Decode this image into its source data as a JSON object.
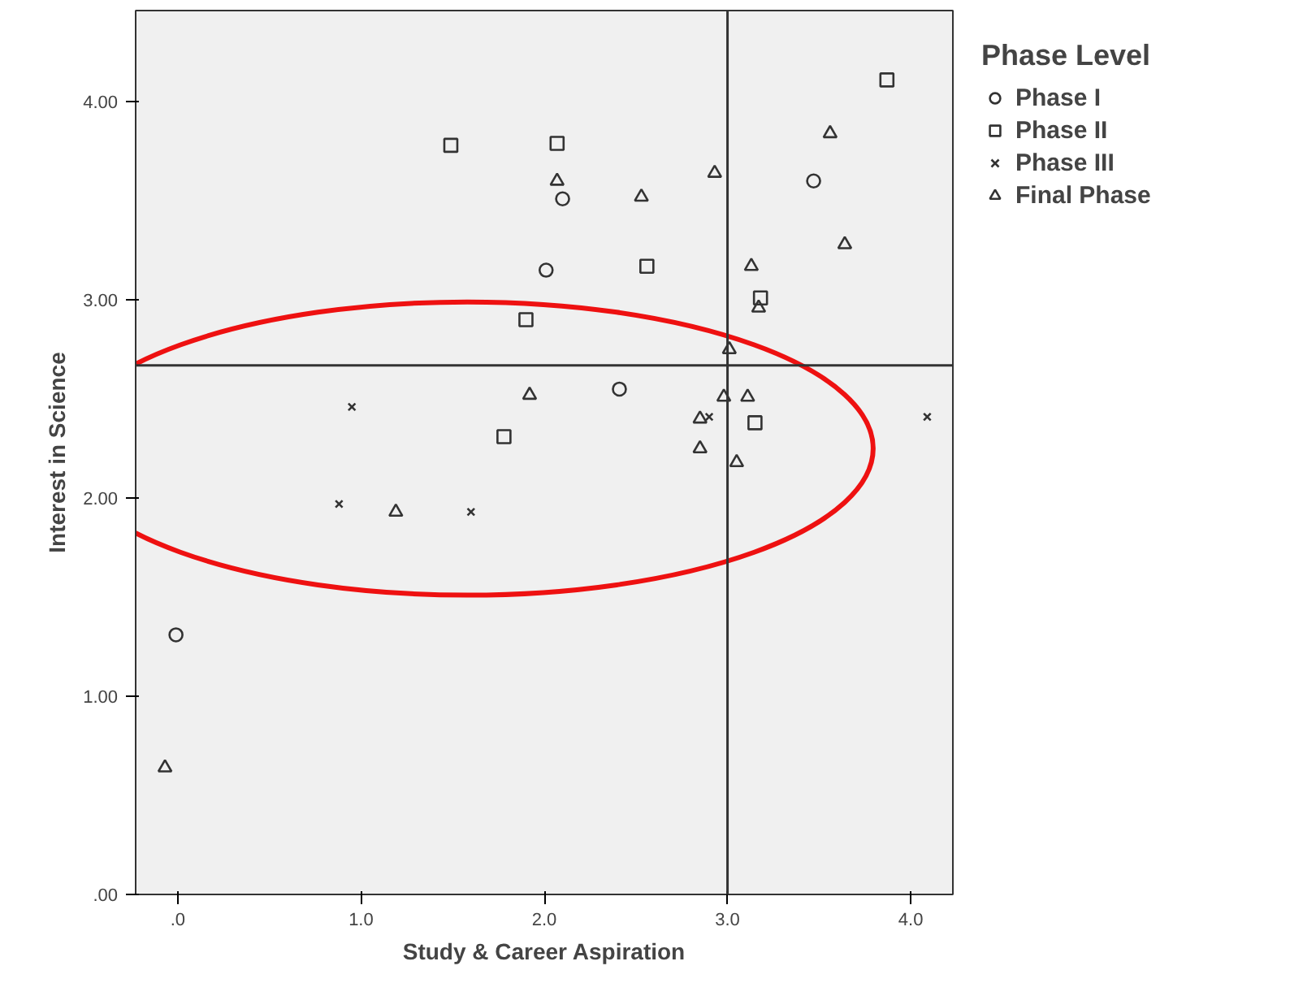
{
  "chart_data": {
    "type": "scatter",
    "xlabel": "Study & Career Aspiration",
    "ylabel": "Interest in Science",
    "legend_title": "Phase Level",
    "legend": "right",
    "grid": false,
    "xlim": [
      -0.23,
      4.23
    ],
    "ylim": [
      0,
      4.46
    ],
    "xticks": [
      {
        "value": 0,
        "label": ".0"
      },
      {
        "value": 1,
        "label": "1.0"
      },
      {
        "value": 2,
        "label": "2.0"
      },
      {
        "value": 3,
        "label": "3.0"
      },
      {
        "value": 4,
        "label": "4.0"
      }
    ],
    "yticks": [
      {
        "value": 0,
        "label": ".00"
      },
      {
        "value": 1,
        "label": "1.00"
      },
      {
        "value": 2,
        "label": "2.00"
      },
      {
        "value": 3,
        "label": "3.00"
      },
      {
        "value": 4,
        "label": "4.00"
      }
    ],
    "ref_lines": [
      {
        "axis": "x",
        "value": 3.0,
        "color": "#333333"
      },
      {
        "axis": "y",
        "value": 2.67,
        "color": "#333333"
      }
    ],
    "series": [
      {
        "name": "Phase I",
        "color": "#333333",
        "marker": "circle",
        "x": [
          2.1,
          2.01,
          3.47,
          2.41,
          -0.01
        ],
        "values": [
          3.51,
          3.15,
          3.6,
          2.55,
          1.31
        ]
      },
      {
        "name": "Phase II",
        "color": "#333333",
        "marker": "square",
        "x": [
          1.49,
          2.07,
          1.9,
          1.78,
          3.87,
          2.56,
          3.18,
          3.15
        ],
        "values": [
          3.78,
          3.79,
          2.9,
          2.31,
          4.11,
          3.17,
          3.01,
          2.38
        ]
      },
      {
        "name": "Phase III",
        "color": "#333333",
        "marker": "cross",
        "x": [
          0.95,
          2.9,
          4.09,
          0.88,
          1.6
        ],
        "values": [
          2.46,
          2.41,
          2.41,
          1.97,
          1.93
        ]
      },
      {
        "name": "Final Phase",
        "color": "#333333",
        "marker": "triangle",
        "x": [
          2.07,
          1.92,
          3.56,
          2.93,
          2.53,
          3.64,
          3.13,
          3.17,
          3.01,
          2.98,
          3.11,
          2.85,
          2.85,
          3.05,
          1.19,
          -0.07
        ],
        "values": [
          3.6,
          2.52,
          3.84,
          3.64,
          3.52,
          3.28,
          3.17,
          2.96,
          2.75,
          2.51,
          2.51,
          2.4,
          2.25,
          2.18,
          1.93,
          0.64
        ]
      }
    ]
  }
}
